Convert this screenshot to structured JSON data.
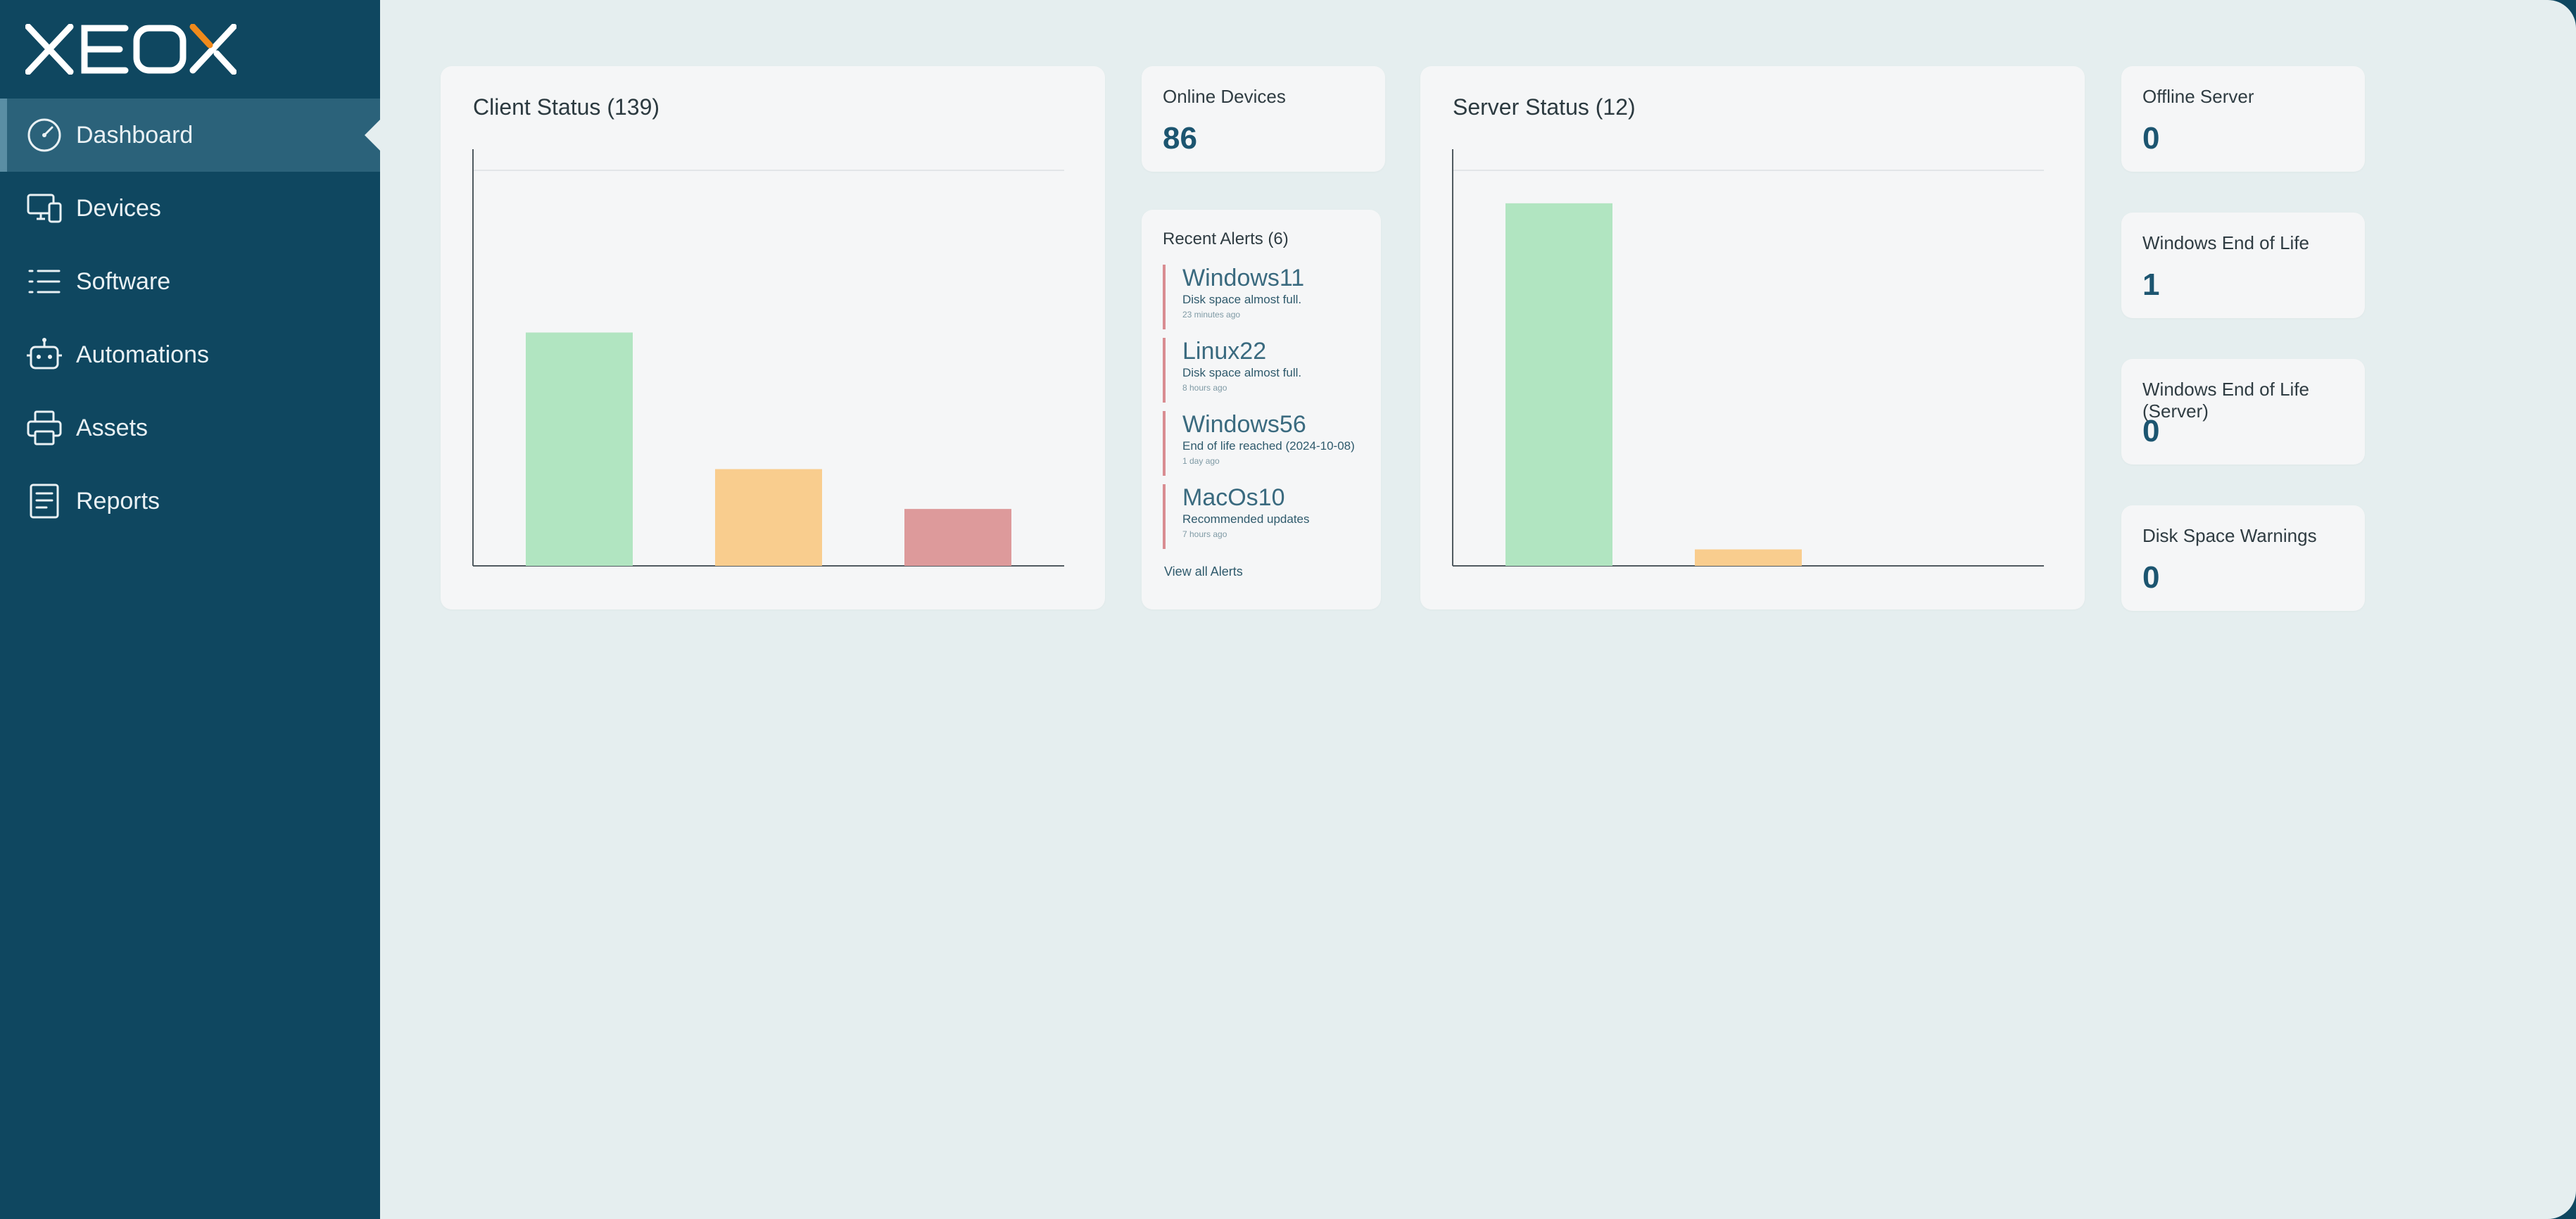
{
  "app": {
    "logo_text": "XEOX",
    "accent_color": "#f08a1c",
    "sidebar_color": "#0f4760"
  },
  "sidebar": {
    "items": [
      {
        "label": "Dashboard",
        "icon": "gauge-icon",
        "active": true
      },
      {
        "label": "Devices",
        "icon": "devices-icon",
        "active": false
      },
      {
        "label": "Software",
        "icon": "list-icon",
        "active": false
      },
      {
        "label": "Automations",
        "icon": "robot-icon",
        "active": false
      },
      {
        "label": "Assets",
        "icon": "printer-icon",
        "active": false
      },
      {
        "label": "Reports",
        "icon": "report-icon",
        "active": false
      }
    ]
  },
  "cards": {
    "client_status": {
      "title": "Client Status (139)"
    },
    "online_devices": {
      "title": "Online Devices",
      "value": "86"
    },
    "recent_alerts": {
      "title": "Recent Alerts (6)",
      "items": [
        {
          "name": "Windows11",
          "description": "Disk space almost full.",
          "time": "23 minutes ago"
        },
        {
          "name": "Linux22",
          "description": "Disk space almost full.",
          "time": "8 hours ago"
        },
        {
          "name": "Windows56",
          "description": "End of life reached (2024-10-08)",
          "time": "1 day ago"
        },
        {
          "name": "MacOs10",
          "description": "Recommended updates",
          "time": "7 hours ago"
        }
      ],
      "view_all_label": "View all Alerts"
    },
    "server_status": {
      "title": "Server Status (12)"
    },
    "offline_server": {
      "title": "Offline Server",
      "value": "0"
    },
    "windows_eol": {
      "title": "Windows End of Life",
      "value": "1"
    },
    "windows_eol_server": {
      "title": "Windows End of Life (Server)",
      "value": "0"
    },
    "disk_space_warnings": {
      "title": "Disk Space Warnings",
      "value": "0"
    }
  },
  "chart_data": [
    {
      "type": "bar",
      "title": "Client Status (139)",
      "categories": [
        "",
        "",
        ""
      ],
      "values": [
        82,
        34,
        20
      ],
      "colors": [
        "#b1e5c1",
        "#f9cd8e",
        "#dd9a9b"
      ],
      "ylim": [
        0,
        139
      ],
      "grid": true
    },
    {
      "type": "bar",
      "title": "Server Status (12)",
      "categories": [
        "",
        "",
        ""
      ],
      "values": [
        11,
        0.5,
        0
      ],
      "colors": [
        "#b1e5c1",
        "#f9cd8e",
        "#dd9a9b"
      ],
      "ylim": [
        0,
        12
      ],
      "grid": true
    }
  ]
}
